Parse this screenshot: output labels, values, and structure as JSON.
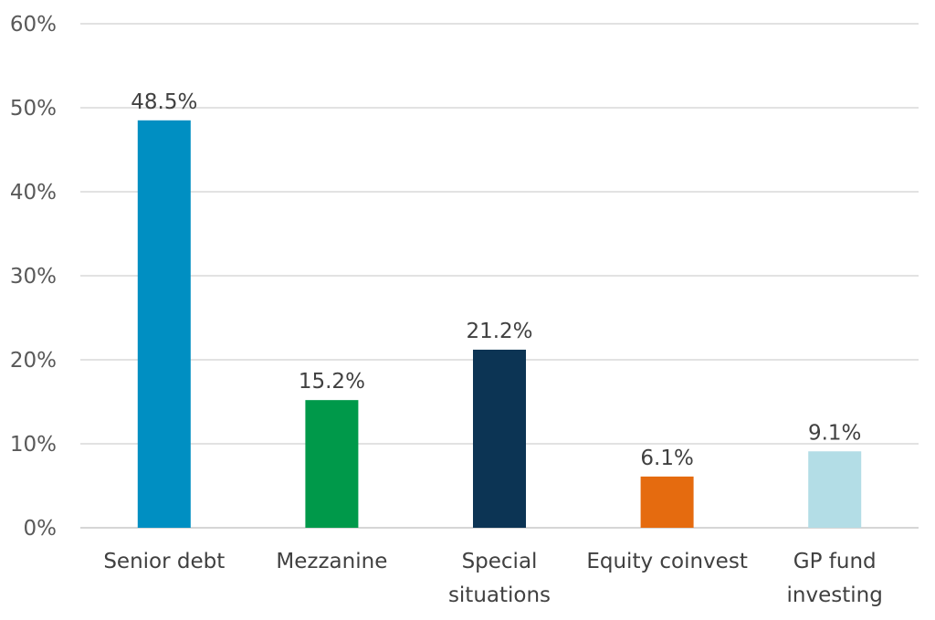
{
  "chart_data": {
    "type": "bar",
    "title": "",
    "xlabel": "",
    "ylabel": "",
    "categories": [
      [
        "Senior debt"
      ],
      [
        "Mezzanine"
      ],
      [
        "Special",
        "situations"
      ],
      [
        "Equity coinvest"
      ],
      [
        "GP fund",
        "investing"
      ]
    ],
    "values": [
      48.5,
      15.2,
      21.2,
      6.1,
      9.1
    ],
    "data_labels": [
      "48.5%",
      "15.2%",
      "21.2%",
      "6.1%",
      "9.1%"
    ],
    "colors": [
      "#008fc2",
      "#00994a",
      "#0c3454",
      "#e56b0f",
      "#b3dde6"
    ],
    "ylim": [
      0,
      60
    ],
    "yticks": [
      0,
      10,
      20,
      30,
      40,
      50,
      60
    ],
    "ytick_labels": [
      "0%",
      "10%",
      "20%",
      "30%",
      "40%",
      "50%",
      "60%"
    ],
    "grid": true,
    "legend": "none"
  }
}
